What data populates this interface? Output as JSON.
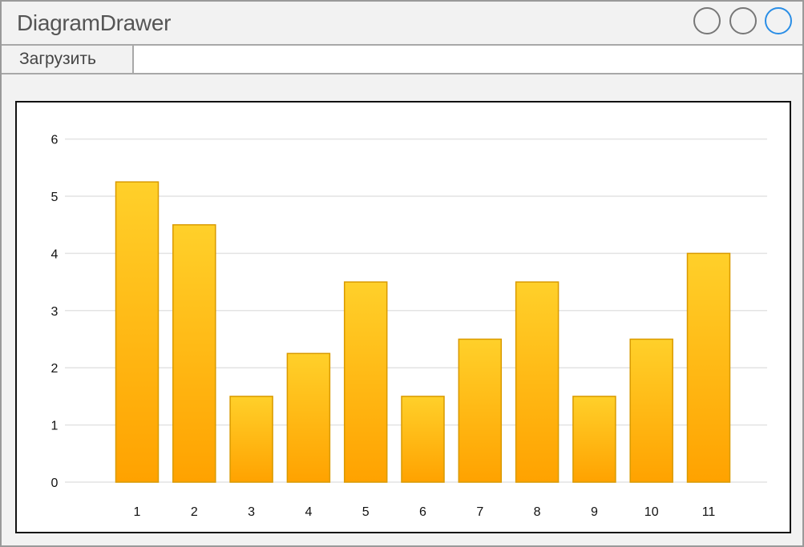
{
  "app": {
    "title": "DiagramDrawer"
  },
  "toolbar": {
    "load_label": "Загрузить"
  },
  "colors": {
    "bar_top": "#FFD02A",
    "bar_bottom": "#FFA200",
    "bar_stroke": "#D99A00",
    "grid": "#e3e3e3",
    "accent": "#2a8ee6"
  },
  "chart_data": {
    "type": "bar",
    "categories": [
      "1",
      "2",
      "3",
      "4",
      "5",
      "6",
      "7",
      "8",
      "9",
      "10",
      "11"
    ],
    "values": [
      5.25,
      4.5,
      1.5,
      2.25,
      3.5,
      1.5,
      2.5,
      3.5,
      1.5,
      2.5,
      4.0
    ],
    "yticks": [
      "0",
      "1",
      "2",
      "3",
      "4",
      "5",
      "6"
    ],
    "ylim": [
      0,
      6
    ],
    "grid": true,
    "title": "",
    "xlabel": "",
    "ylabel": ""
  }
}
